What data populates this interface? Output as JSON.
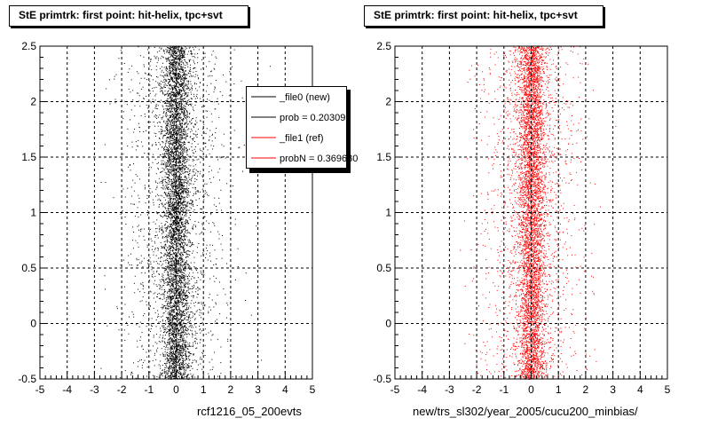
{
  "colors": {
    "primary_series": "#000000",
    "reference_series": "#ff0000",
    "grid": "#000000",
    "background": "#ffffff"
  },
  "footer_text": "",
  "chart_data": [
    {
      "type": "scatter",
      "title": "StE primtrk: first point: hit-helix, tpc+svt",
      "xlabel": "rcf1216_05_200evts",
      "ylabel": "",
      "xlim": [
        -5,
        5
      ],
      "ylim": [
        -0.5,
        2.5
      ],
      "xticks": [
        "-5",
        "-4",
        "-3",
        "-2",
        "-1",
        "0",
        "1",
        "2",
        "3",
        "4",
        "5"
      ],
      "yticks": [
        "-0.5",
        "0",
        "0.5",
        "1",
        "1.5",
        "2",
        "2.5"
      ],
      "grid": true,
      "legend_position": "top-right",
      "legend": [
        {
          "label": "_file0 (new)",
          "color": "#000000"
        },
        {
          "label": "prob = 0.203095",
          "color": "#000000"
        },
        {
          "label": "_file1 (ref)",
          "color": "#ff0000"
        },
        {
          "label": "probN = 0.369630",
          "color": "#ff0000"
        }
      ],
      "series": [
        {
          "color": "#000000",
          "distribution": {
            "x_center": 0.0,
            "x_core_sigma": 0.25,
            "x_tail_sigma": 0.9,
            "y_range": [
              -0.5,
              2.5
            ]
          }
        }
      ]
    },
    {
      "type": "scatter",
      "title": "StE primtrk: first point: hit-helix, tpc+svt",
      "xlabel": "new/trs_sl302/year_2005/cucu200_minbias/",
      "ylabel": "",
      "xlim": [
        -5,
        5
      ],
      "ylim": [
        -0.5,
        2.5
      ],
      "xticks": [
        "-5",
        "-4",
        "-3",
        "-2",
        "-1",
        "0",
        "1",
        "2",
        "3",
        "4",
        "5"
      ],
      "yticks": [
        "-0.5",
        "0",
        "0.5",
        "1",
        "1.5",
        "2",
        "2.5"
      ],
      "grid": true,
      "series": [
        {
          "color": "#ff0000",
          "distribution": {
            "x_center": 0.0,
            "x_core_sigma": 0.25,
            "x_tail_sigma": 0.9,
            "y_range": [
              -0.5,
              2.5
            ]
          }
        }
      ]
    }
  ]
}
